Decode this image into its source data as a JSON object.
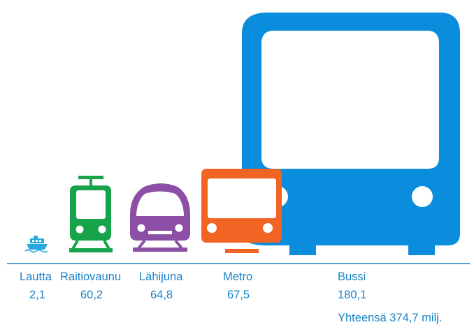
{
  "chart_data": {
    "type": "pictograph",
    "title": "",
    "categories": [
      "Lautta",
      "Raitiovaunu",
      "Lähijuna",
      "Metro",
      "Bussi"
    ],
    "values": [
      "2,1",
      "60,2",
      "64,8",
      "67,5",
      "180,1"
    ],
    "values_numeric": [
      2.1,
      60.2,
      64.8,
      67.5,
      180.1
    ],
    "icons": [
      "ferry-icon",
      "tram-icon",
      "train-icon",
      "metro-icon",
      "bus-icon"
    ],
    "colors": [
      "#29a8e0",
      "#17a34a",
      "#8d4fa5",
      "#f26424",
      "#0a8ddc"
    ],
    "label_color": "#1a84c9",
    "baseline_color": "#1a84c9",
    "total_label": "Yhteensä 374,7 milj.",
    "legend": "none",
    "grid": false
  }
}
